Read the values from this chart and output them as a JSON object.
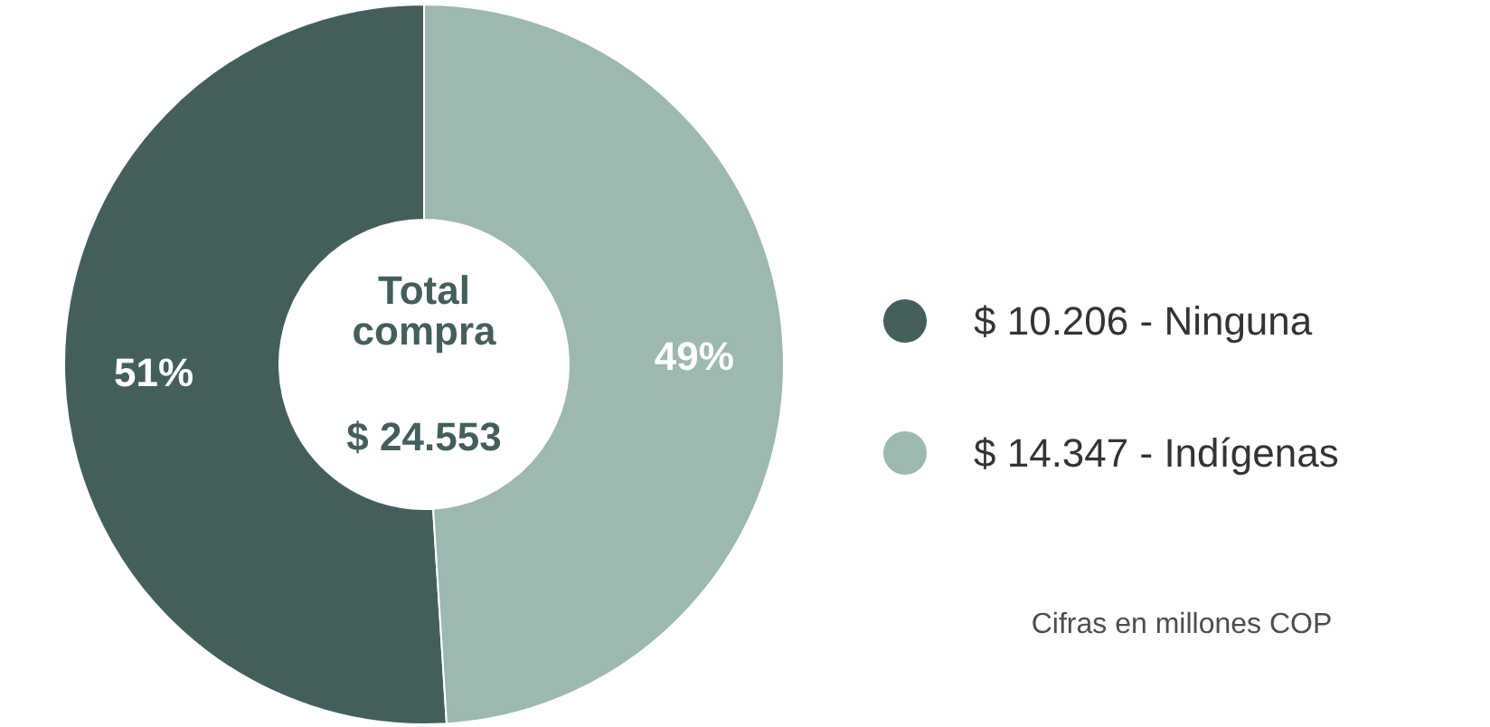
{
  "chart_data": {
    "type": "donut",
    "categories": [
      "$ 10.206 - Ninguna",
      "$ 14.347 - Indígenas"
    ],
    "values": [
      51,
      49
    ],
    "colors": [
      "#445f5b",
      "#9cb8b0"
    ],
    "value_labels": [
      "51%",
      "49%"
    ],
    "legend": "right",
    "annotations": [
      "Total compra",
      "$ 24.553",
      "Cifras en millones COP"
    ]
  }
}
